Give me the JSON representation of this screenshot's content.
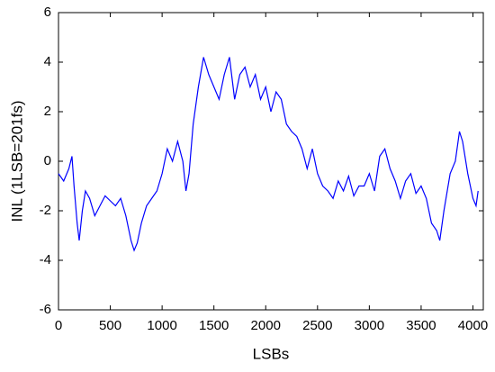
{
  "chart_data": {
    "type": "line",
    "x_label": "LSBs",
    "y_label": "INL (1LSB=201fs)",
    "x": [
      0,
      50,
      100,
      130,
      150,
      180,
      200,
      230,
      260,
      300,
      350,
      400,
      450,
      500,
      550,
      600,
      650,
      700,
      730,
      760,
      800,
      850,
      900,
      950,
      1000,
      1050,
      1100,
      1150,
      1200,
      1230,
      1260,
      1300,
      1350,
      1400,
      1450,
      1500,
      1550,
      1600,
      1650,
      1700,
      1750,
      1800,
      1850,
      1900,
      1950,
      2000,
      2050,
      2100,
      2150,
      2200,
      2250,
      2300,
      2350,
      2400,
      2450,
      2500,
      2550,
      2600,
      2650,
      2700,
      2750,
      2800,
      2850,
      2900,
      2950,
      3000,
      3050,
      3100,
      3150,
      3200,
      3250,
      3300,
      3350,
      3400,
      3450,
      3500,
      3550,
      3600,
      3650,
      3680,
      3720,
      3780,
      3830,
      3870,
      3900,
      3950,
      4000,
      4030,
      4050
    ],
    "series": [
      {
        "name": "INL",
        "color": "#0000ff",
        "values": [
          -0.5,
          -0.8,
          -0.3,
          0.2,
          -1,
          -2.5,
          -3.2,
          -2,
          -1.2,
          -1.5,
          -2.2,
          -1.8,
          -1.4,
          -1.6,
          -1.8,
          -1.5,
          -2.2,
          -3.2,
          -3.6,
          -3.3,
          -2.5,
          -1.8,
          -1.5,
          -1.2,
          -0.5,
          0.5,
          0,
          0.8,
          0,
          -1.2,
          -0.5,
          1.5,
          3,
          4.2,
          3.5,
          3,
          2.5,
          3.5,
          4.2,
          2.5,
          3.5,
          3.8,
          3,
          3.5,
          2.5,
          3,
          2,
          2.8,
          2.5,
          1.5,
          1.2,
          1,
          0.5,
          -0.3,
          0.5,
          -0.5,
          -1,
          -1.2,
          -1.5,
          -0.8,
          -1.2,
          -0.6,
          -1.4,
          -1,
          -1,
          -0.5,
          -1.2,
          0.2,
          0.5,
          -0.3,
          -0.8,
          -1.5,
          -0.8,
          -0.5,
          -1.3,
          -1,
          -1.5,
          -2.5,
          -2.8,
          -3.2,
          -2,
          -0.5,
          0,
          1.2,
          0.8,
          -0.5,
          -1.5,
          -1.8,
          -1.2
        ]
      }
    ],
    "xlim": [
      0,
      4100
    ],
    "ylim": [
      -6,
      6
    ],
    "xticks": [
      0,
      500,
      1000,
      1500,
      2000,
      2500,
      3000,
      3500,
      4000
    ],
    "yticks": [
      -6,
      -4,
      -2,
      0,
      2,
      4,
      6
    ]
  }
}
